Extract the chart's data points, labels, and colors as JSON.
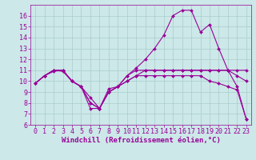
{
  "xlabel": "Windchill (Refroidissement éolien,°C)",
  "background_color": "#cce8e8",
  "line_color": "#990099",
  "grid_color": "#aacccc",
  "xlim": [
    -0.5,
    23.5
  ],
  "ylim": [
    6,
    17
  ],
  "xticks": [
    0,
    1,
    2,
    3,
    4,
    5,
    6,
    7,
    8,
    9,
    10,
    11,
    12,
    13,
    14,
    15,
    16,
    17,
    18,
    19,
    20,
    21,
    22,
    23
  ],
  "yticks": [
    6,
    7,
    8,
    9,
    10,
    11,
    12,
    13,
    14,
    15,
    16
  ],
  "lines": [
    {
      "x": [
        0,
        1,
        2,
        3,
        4,
        5,
        6,
        7,
        8,
        9,
        10,
        11,
        12,
        13,
        14,
        15,
        16,
        17,
        18,
        19,
        20,
        21,
        22,
        23
      ],
      "y": [
        9.8,
        10.5,
        10.9,
        11.0,
        10.0,
        9.5,
        7.5,
        7.5,
        9.3,
        9.5,
        10.5,
        11.0,
        11.0,
        11.0,
        11.0,
        11.0,
        11.0,
        11.0,
        11.0,
        11.0,
        11.0,
        11.0,
        11.0,
        11.0
      ]
    },
    {
      "x": [
        0,
        1,
        2,
        3,
        4,
        5,
        6,
        7,
        8,
        9,
        10,
        11,
        12,
        13,
        14,
        15,
        16,
        17,
        18,
        19,
        20,
        21,
        22,
        23
      ],
      "y": [
        9.8,
        10.5,
        11.0,
        10.9,
        10.0,
        9.5,
        8.0,
        7.5,
        9.0,
        9.5,
        10.0,
        10.5,
        10.5,
        10.5,
        10.5,
        10.5,
        10.5,
        10.5,
        10.5,
        10.0,
        9.8,
        9.5,
        9.2,
        6.5
      ]
    },
    {
      "x": [
        0,
        1,
        2,
        3,
        4,
        5,
        6,
        7,
        8,
        9,
        10,
        11,
        12,
        13,
        14,
        15,
        16,
        17,
        18,
        19,
        20,
        21,
        22,
        23
      ],
      "y": [
        9.8,
        10.5,
        11.0,
        11.0,
        10.0,
        9.5,
        8.5,
        7.5,
        9.0,
        9.5,
        10.5,
        11.2,
        12.0,
        13.0,
        14.2,
        16.0,
        16.5,
        16.5,
        14.5,
        15.2,
        13.0,
        11.0,
        9.5,
        6.5
      ]
    },
    {
      "x": [
        0,
        1,
        2,
        3,
        4,
        5,
        6,
        7,
        8,
        9,
        10,
        11,
        12,
        13,
        14,
        15,
        16,
        17,
        18,
        19,
        20,
        21,
        22,
        23
      ],
      "y": [
        9.8,
        10.5,
        11.0,
        11.0,
        10.0,
        9.5,
        8.0,
        7.5,
        9.0,
        9.5,
        10.0,
        10.5,
        11.0,
        11.0,
        11.0,
        11.0,
        11.0,
        11.0,
        11.0,
        11.0,
        11.0,
        11.0,
        10.5,
        10.0
      ]
    }
  ],
  "font_size_xlabel": 6.5,
  "font_size_ticks": 6.0
}
